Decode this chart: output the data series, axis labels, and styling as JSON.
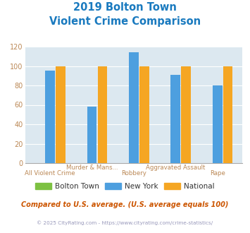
{
  "title_line1": "2019 Bolton Town",
  "title_line2": "Violent Crime Comparison",
  "categories": [
    "All Violent Crime",
    "Murder & Mans...",
    "Robbery",
    "Aggravated Assault",
    "Rape"
  ],
  "series": {
    "Bolton Town": [
      0,
      0,
      0,
      0,
      0
    ],
    "New York": [
      95,
      58,
      114,
      91,
      80
    ],
    "National": [
      100,
      100,
      100,
      100,
      100
    ]
  },
  "colors": {
    "Bolton Town": "#7dc142",
    "New York": "#4d9fdf",
    "National": "#f5a623"
  },
  "ylim": [
    0,
    120
  ],
  "yticks": [
    0,
    20,
    40,
    60,
    80,
    100,
    120
  ],
  "plot_bg": "#dce8f0",
  "title_color": "#1a7abf",
  "footer_text": "Compared to U.S. average. (U.S. average equals 100)",
  "credit_text": "© 2025 CityRating.com - https://www.cityrating.com/crime-statistics/",
  "footer_color": "#cc5500",
  "credit_color": "#9999bb",
  "grid_color": "#ffffff",
  "tick_color": "#bb8855",
  "legend_text_color": "#333333",
  "axis_color": "#aaaaaa"
}
